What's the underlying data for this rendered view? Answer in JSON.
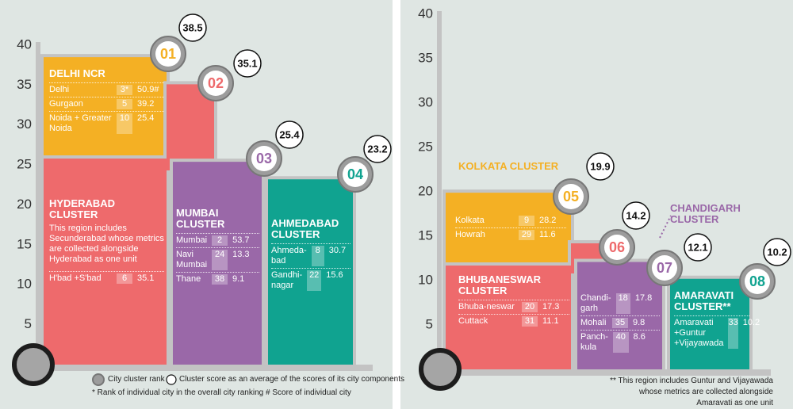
{
  "chart_data": [
    {
      "type": "cluster-steps",
      "ylim": [
        0,
        40
      ],
      "yticks": [
        5,
        10,
        15,
        20,
        25,
        30,
        35,
        40
      ],
      "clusters": [
        {
          "name": "DELHI NCR",
          "rank": "01",
          "score": 38.5,
          "color": "#f4b024",
          "cities": [
            {
              "name": "Delhi",
              "rank": "3*",
              "score": "50.9#"
            },
            {
              "name": "Gurgaon",
              "rank": 5,
              "score": 39.2
            },
            {
              "name": "Noida + Greater Noida",
              "rank": 10,
              "score": 25.4
            }
          ]
        },
        {
          "name": "HYDERABAD CLUSTER",
          "rank": "02",
          "score": 35.1,
          "color": "#ee6a6c",
          "description": "This region includes Secunderabad whose metrics are collected alongside Hyderabad as one unit",
          "cities": [
            {
              "name": "H'bad +S'bad",
              "rank": 6,
              "score": 35.1
            }
          ]
        },
        {
          "name": "MUMBAI CLUSTER",
          "rank": "03",
          "score": 25.4,
          "color": "#9a68a8",
          "cities": [
            {
              "name": "Mumbai",
              "rank": 2,
              "score": 53.7
            },
            {
              "name": "Navi Mumbai",
              "rank": 24,
              "score": 13.3
            },
            {
              "name": "Thane",
              "rank": 38,
              "score": 9.1
            }
          ]
        },
        {
          "name": "AHMEDABAD CLUSTER",
          "rank": "04",
          "score": 23.2,
          "color": "#10a390",
          "cities": [
            {
              "name": "Ahmeda-bad",
              "rank": 8,
              "score": 30.7
            },
            {
              "name": "Gandhi-nagar",
              "rank": 22,
              "score": 15.6
            }
          ]
        }
      ],
      "footnotes": [
        "City cluster rank",
        "Cluster score as an average of the scores of its city components",
        "* Rank of individual city in the overall city ranking  # Score of individual city"
      ]
    },
    {
      "type": "cluster-steps",
      "ylim": [
        0,
        40
      ],
      "yticks": [
        5,
        10,
        15,
        20,
        25,
        30,
        35,
        40
      ],
      "clusters": [
        {
          "name": "KOLKATA CLUSTER",
          "rank": "05",
          "score": 19.9,
          "color": "#f4b024",
          "cities": [
            {
              "name": "Kolkata",
              "rank": 9,
              "score": 28.2
            },
            {
              "name": "Howrah",
              "rank": 29,
              "score": 11.6
            }
          ]
        },
        {
          "name": "BHUBANESWAR CLUSTER",
          "rank": "06",
          "score": 14.2,
          "color": "#ee6a6c",
          "cities": [
            {
              "name": "Bhuba-neswar",
              "rank": 20,
              "score": 17.3
            },
            {
              "name": "Cuttack",
              "rank": 31,
              "score": 11.1
            }
          ]
        },
        {
          "name": "CHANDIGARH CLUSTER",
          "rank": "07",
          "score": 12.1,
          "color": "#9a68a8",
          "cities": [
            {
              "name": "Chandi-garh",
              "rank": 18,
              "score": 17.8
            },
            {
              "name": "Mohali",
              "rank": 35,
              "score": 9.8
            },
            {
              "name": "Panch-kula",
              "rank": 40,
              "score": 8.6
            }
          ]
        },
        {
          "name": "AMARAVATI CLUSTER**",
          "rank": "08",
          "score": 10.2,
          "color": "#10a390",
          "cities": [
            {
              "name": "Amaravati +Guntur +Vijayawada",
              "rank": 33,
              "score": 10.2
            }
          ]
        }
      ],
      "footnotes": [
        "** This region includes Guntur and Vijayawada whose metrics are collected alongside Amaravati as one unit"
      ]
    }
  ]
}
